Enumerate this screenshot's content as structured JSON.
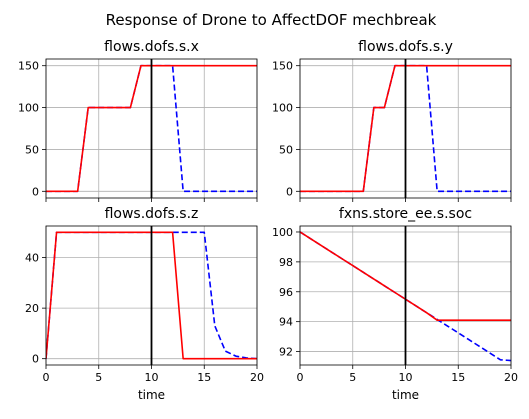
{
  "suptitle": "Response of Drone to AffectDOF mechbreak",
  "colors": {
    "nominal": "#0000ff",
    "faulty": "#ff0000",
    "fault_time_line": "#000000",
    "grid": "#b0b0b0"
  },
  "chart_data": [
    {
      "type": "line",
      "title": "flows.dofs.s.x",
      "xlabel": "",
      "ylabel": "",
      "xlim": [
        0,
        20
      ],
      "ylim": [
        -8,
        158
      ],
      "xticks": [
        0,
        5,
        10,
        15,
        20
      ],
      "xticklabels": [
        "",
        "",
        "",
        "",
        ""
      ],
      "yticks": [
        0,
        50,
        100,
        150
      ],
      "grid": true,
      "fault_time": 10,
      "series": [
        {
          "style": "dashed",
          "color": "#0000ff",
          "x": [
            0,
            1,
            2,
            3,
            4,
            5,
            6,
            7,
            8,
            9,
            10,
            11,
            12,
            13,
            14,
            15,
            16,
            17,
            18,
            19,
            20
          ],
          "y": [
            0,
            0,
            0,
            0,
            100,
            100,
            100,
            100,
            100,
            150,
            150,
            150,
            150,
            0,
            0,
            0,
            0,
            0,
            0,
            0,
            0
          ]
        },
        {
          "style": "solid",
          "color": "#ff0000",
          "x": [
            0,
            1,
            2,
            3,
            4,
            5,
            6,
            7,
            8,
            9,
            10,
            11,
            12,
            13,
            14,
            15,
            16,
            17,
            18,
            19,
            20
          ],
          "y": [
            0,
            0,
            0,
            0,
            100,
            100,
            100,
            100,
            100,
            150,
            150,
            150,
            150,
            150,
            150,
            150,
            150,
            150,
            150,
            150,
            150
          ]
        }
      ]
    },
    {
      "type": "line",
      "title": "flows.dofs.s.y",
      "xlabel": "",
      "ylabel": "",
      "xlim": [
        0,
        20
      ],
      "ylim": [
        -8,
        158
      ],
      "xticks": [
        0,
        5,
        10,
        15,
        20
      ],
      "xticklabels": [
        "",
        "",
        "",
        "",
        ""
      ],
      "yticks": [
        0,
        50,
        100,
        150
      ],
      "grid": true,
      "fault_time": 10,
      "series": [
        {
          "style": "dashed",
          "color": "#0000ff",
          "x": [
            0,
            1,
            2,
            3,
            4,
            5,
            6,
            7,
            8,
            9,
            10,
            11,
            12,
            13,
            14,
            15,
            16,
            17,
            18,
            19,
            20
          ],
          "y": [
            0,
            0,
            0,
            0,
            0,
            0,
            0,
            100,
            100,
            150,
            150,
            150,
            150,
            0,
            0,
            0,
            0,
            0,
            0,
            0,
            0
          ]
        },
        {
          "style": "solid",
          "color": "#ff0000",
          "x": [
            0,
            1,
            2,
            3,
            4,
            5,
            6,
            7,
            8,
            9,
            10,
            11,
            12,
            13,
            14,
            15,
            16,
            17,
            18,
            19,
            20
          ],
          "y": [
            0,
            0,
            0,
            0,
            0,
            0,
            0,
            100,
            100,
            150,
            150,
            150,
            150,
            150,
            150,
            150,
            150,
            150,
            150,
            150,
            150
          ]
        }
      ]
    },
    {
      "type": "line",
      "title": "flows.dofs.s.z",
      "xlabel": "time",
      "ylabel": "",
      "xlim": [
        0,
        20
      ],
      "ylim": [
        -2.5,
        52.5
      ],
      "xticks": [
        0,
        5,
        10,
        15,
        20
      ],
      "xticklabels": [
        "0",
        "5",
        "10",
        "15",
        "20"
      ],
      "yticks": [
        0,
        20,
        40
      ],
      "grid": true,
      "fault_time": 10,
      "series": [
        {
          "style": "dashed",
          "color": "#0000ff",
          "x": [
            0,
            1,
            2,
            3,
            4,
            5,
            6,
            7,
            8,
            9,
            10,
            11,
            12,
            13,
            14,
            15,
            16,
            17,
            18,
            19,
            20
          ],
          "y": [
            0,
            50,
            50,
            50,
            50,
            50,
            50,
            50,
            50,
            50,
            50,
            50,
            50,
            50,
            50,
            50,
            13,
            3,
            1,
            0.3,
            0
          ]
        },
        {
          "style": "solid",
          "color": "#ff0000",
          "x": [
            0,
            1,
            2,
            3,
            4,
            5,
            6,
            7,
            8,
            9,
            10,
            11,
            12,
            13,
            14,
            15,
            16,
            17,
            18,
            19,
            20
          ],
          "y": [
            0,
            50,
            50,
            50,
            50,
            50,
            50,
            50,
            50,
            50,
            50,
            50,
            50,
            0,
            0,
            0,
            0,
            0,
            0,
            0,
            0
          ]
        }
      ]
    },
    {
      "type": "line",
      "title": "fxns.store_ee.s.soc",
      "xlabel": "time",
      "ylabel": "",
      "xlim": [
        0,
        20
      ],
      "ylim": [
        91.1,
        100.4
      ],
      "xticks": [
        0,
        5,
        10,
        15,
        20
      ],
      "xticklabels": [
        "0",
        "5",
        "10",
        "15",
        "20"
      ],
      "yticks": [
        92,
        94,
        96,
        98,
        100
      ],
      "grid": true,
      "fault_time": 10,
      "series": [
        {
          "style": "dashed",
          "color": "#0000ff",
          "x": [
            0,
            1,
            2,
            3,
            4,
            5,
            6,
            7,
            8,
            9,
            10,
            11,
            12,
            13,
            14,
            15,
            16,
            17,
            18,
            19,
            20
          ],
          "y": [
            100,
            99.55,
            99.1,
            98.65,
            98.2,
            97.75,
            97.3,
            96.85,
            96.4,
            95.95,
            95.5,
            95.05,
            94.6,
            94.15,
            93.7,
            93.25,
            92.8,
            92.35,
            91.9,
            91.45,
            91.4
          ]
        },
        {
          "style": "solid",
          "color": "#ff0000",
          "x": [
            0,
            1,
            2,
            3,
            4,
            5,
            6,
            7,
            8,
            9,
            10,
            11,
            12,
            13,
            14,
            15,
            16,
            17,
            18,
            19,
            20
          ],
          "y": [
            100,
            99.55,
            99.1,
            98.65,
            98.2,
            97.75,
            97.3,
            96.85,
            96.4,
            95.95,
            95.5,
            95.05,
            94.6,
            94.1,
            94.1,
            94.1,
            94.1,
            94.1,
            94.1,
            94.1,
            94.1
          ]
        }
      ]
    }
  ]
}
